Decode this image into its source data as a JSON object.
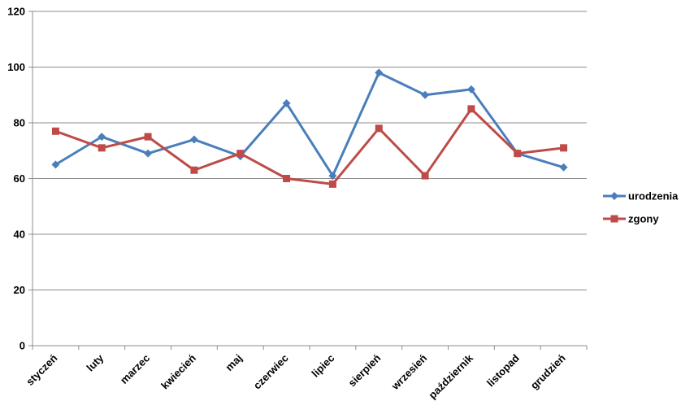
{
  "chart_data": {
    "type": "line",
    "categories": [
      "styczeń",
      "luty",
      "marzec",
      "kwiecień",
      "maj",
      "czerwiec",
      "lipiec",
      "sierpień",
      "wrzesień",
      "październik",
      "listopad",
      "grudzień"
    ],
    "series": [
      {
        "name": "urodzenia",
        "color": "#4a7ebb",
        "marker": "diamond",
        "values": [
          65,
          75,
          69,
          74,
          68,
          87,
          61,
          98,
          90,
          92,
          69,
          64
        ]
      },
      {
        "name": "zgony",
        "color": "#be4b48",
        "marker": "square",
        "values": [
          77,
          71,
          75,
          63,
          69,
          60,
          58,
          78,
          61,
          85,
          69,
          71
        ]
      }
    ],
    "ylim": [
      0,
      120
    ],
    "yticks": [
      0,
      20,
      40,
      60,
      80,
      100,
      120
    ],
    "grid": true,
    "legend": "right"
  }
}
